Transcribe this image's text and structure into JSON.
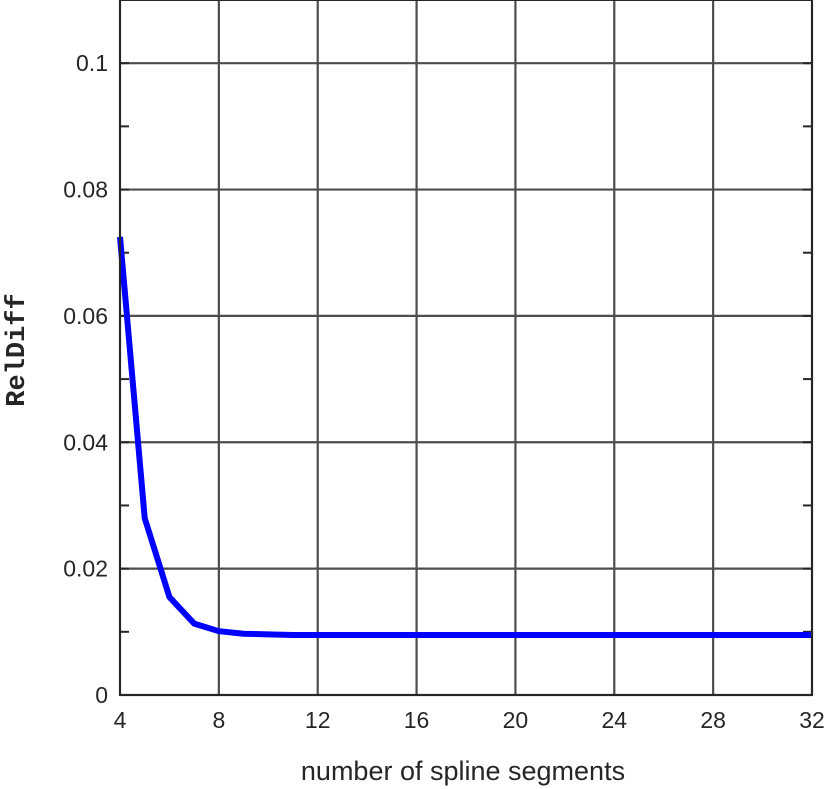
{
  "chart_data": {
    "type": "line",
    "title": "",
    "xlabel": "number of spline segments",
    "ylabel": "RelDiff",
    "xlim": [
      4,
      32
    ],
    "ylim": [
      0,
      0.11
    ],
    "xticks": [
      4,
      8,
      12,
      16,
      20,
      24,
      28,
      32
    ],
    "xtick_labels": [
      "4",
      "8",
      "12",
      "16",
      "20",
      "24",
      "28",
      "32"
    ],
    "yticks": [
      0,
      0.02,
      0.04,
      0.06,
      0.08,
      0.1
    ],
    "ytick_labels": [
      "0",
      "0.02",
      "0.04",
      "0.06",
      "0.08",
      "0.1"
    ],
    "grid": true,
    "series": [
      {
        "color": "#0000ff",
        "x": [
          4,
          5,
          6,
          7,
          8,
          9,
          10,
          11,
          12,
          13,
          14,
          15,
          16,
          17,
          18,
          19,
          20,
          21,
          22,
          23,
          24,
          25,
          26,
          27,
          28,
          29,
          30,
          31,
          32
        ],
        "values": [
          0.0725,
          0.028,
          0.0155,
          0.0113,
          0.0101,
          0.0097,
          0.0096,
          0.0095,
          0.0095,
          0.0095,
          0.0095,
          0.0095,
          0.0095,
          0.0095,
          0.0095,
          0.0095,
          0.0095,
          0.0095,
          0.0095,
          0.0095,
          0.0095,
          0.0095,
          0.0095,
          0.0095,
          0.0095,
          0.0095,
          0.0095,
          0.0095,
          0.0095
        ]
      }
    ]
  }
}
